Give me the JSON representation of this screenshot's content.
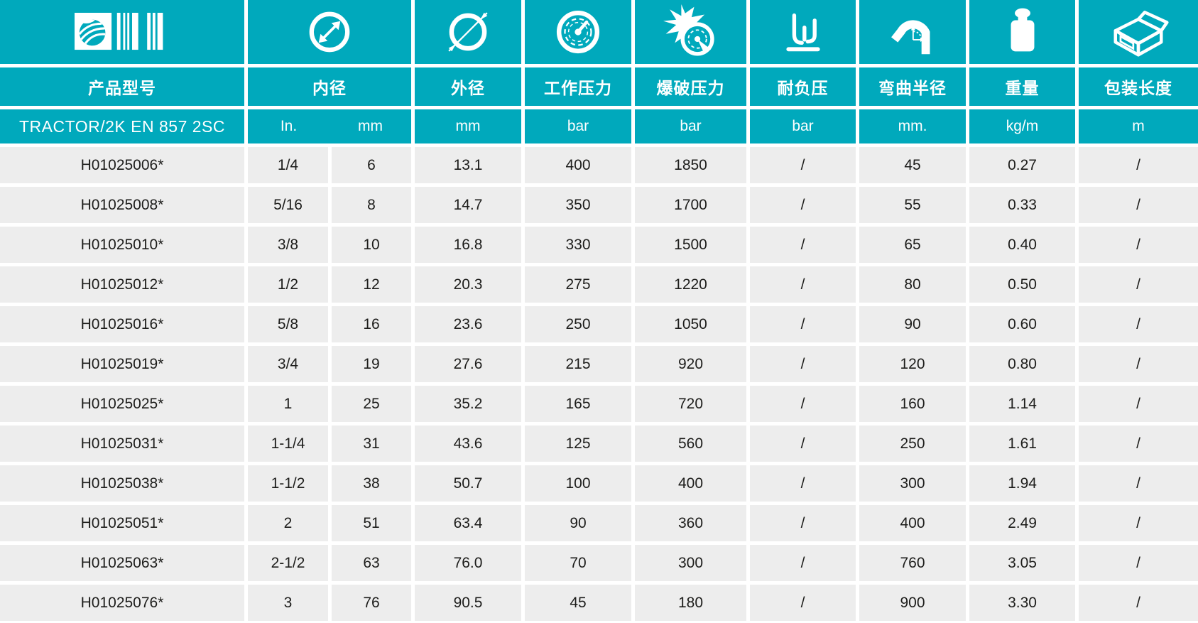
{
  "colors": {
    "accent_teal": "#00a9bc",
    "row_background": "#ededed",
    "data_text": "#1d1d1b",
    "header_text": "#ffffff"
  },
  "table": {
    "product_series": "TRACTOR/2K EN 857 2SC",
    "columns": [
      {
        "label": "产品型号",
        "icon": "logo-barcode-icon"
      },
      {
        "label": "内径",
        "icon": "inner-diameter-icon",
        "unit_in": "In.",
        "unit_mm": "mm"
      },
      {
        "label": "外径",
        "icon": "outer-diameter-icon",
        "unit": "mm"
      },
      {
        "label": "工作压力",
        "icon": "working-pressure-gauge-icon",
        "unit": "bar"
      },
      {
        "label": "爆破压力",
        "icon": "burst-pressure-gauge-icon",
        "unit": "bar"
      },
      {
        "label": "耐负压",
        "icon": "vacuum-resistance-icon",
        "unit": "bar"
      },
      {
        "label": "弯曲半径",
        "icon": "bend-radius-icon",
        "unit": "mm."
      },
      {
        "label": "重量",
        "icon": "weight-icon",
        "unit": "kg/m"
      },
      {
        "label": "包装长度",
        "icon": "package-length-icon",
        "unit": "m"
      }
    ],
    "rows": [
      [
        "H01025006*",
        "1/4",
        "6",
        "13.1",
        "400",
        "1850",
        "/",
        "45",
        "0.27",
        "/"
      ],
      [
        "H01025008*",
        "5/16",
        "8",
        "14.7",
        "350",
        "1700",
        "/",
        "55",
        "0.33",
        "/"
      ],
      [
        "H01025010*",
        "3/8",
        "10",
        "16.8",
        "330",
        "1500",
        "/",
        "65",
        "0.40",
        "/"
      ],
      [
        "H01025012*",
        "1/2",
        "12",
        "20.3",
        "275",
        "1220",
        "/",
        "80",
        "0.50",
        "/"
      ],
      [
        "H01025016*",
        "5/8",
        "16",
        "23.6",
        "250",
        "1050",
        "/",
        "90",
        "0.60",
        "/"
      ],
      [
        "H01025019*",
        "3/4",
        "19",
        "27.6",
        "215",
        "920",
        "/",
        "120",
        "0.80",
        "/"
      ],
      [
        "H01025025*",
        "1",
        "25",
        "35.2",
        "165",
        "720",
        "/",
        "160",
        "1.14",
        "/"
      ],
      [
        "H01025031*",
        "1-1/4",
        "31",
        "43.6",
        "125",
        "560",
        "/",
        "250",
        "1.61",
        "/"
      ],
      [
        "H01025038*",
        "1-1/2",
        "38",
        "50.7",
        "100",
        "400",
        "/",
        "300",
        "1.94",
        "/"
      ],
      [
        "H01025051*",
        "2",
        "51",
        "63.4",
        "90",
        "360",
        "/",
        "400",
        "2.49",
        "/"
      ],
      [
        "H01025063*",
        "2-1/2",
        "63",
        "76.0",
        "70",
        "300",
        "/",
        "760",
        "3.05",
        "/"
      ],
      [
        "H01025076*",
        "3",
        "76",
        "90.5",
        "45",
        "180",
        "/",
        "900",
        "3.30",
        "/"
      ]
    ]
  }
}
